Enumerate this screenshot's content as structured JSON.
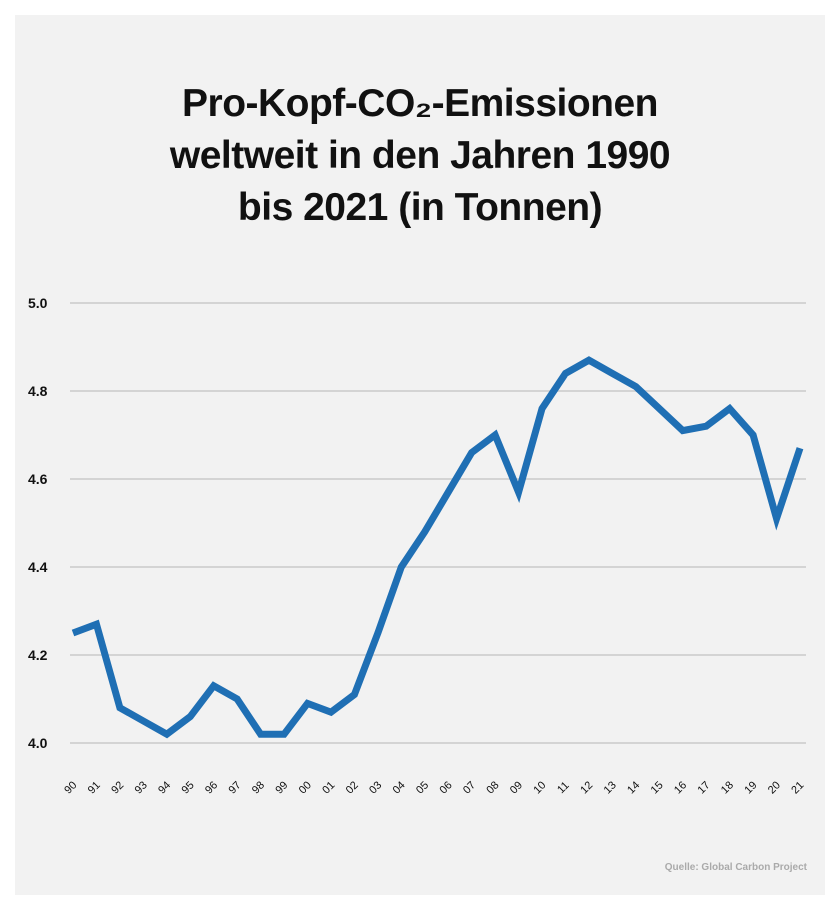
{
  "chart_data": {
    "type": "line",
    "title": [
      "Pro-Kopf-CO₂-Emissionen",
      "weltweit in den Jahren 1990",
      "bis 2021 (in Tonnen)"
    ],
    "xlabel": "",
    "ylabel": "",
    "categories": [
      "90",
      "91",
      "92",
      "93",
      "94",
      "95",
      "96",
      "97",
      "98",
      "99",
      "00",
      "01",
      "02",
      "03",
      "04",
      "05",
      "06",
      "07",
      "08",
      "09",
      "10",
      "11",
      "12",
      "13",
      "14",
      "15",
      "16",
      "17",
      "18",
      "19",
      "20",
      "21"
    ],
    "values": [
      4.25,
      4.27,
      4.08,
      4.05,
      4.02,
      4.06,
      4.13,
      4.1,
      4.02,
      4.02,
      4.09,
      4.07,
      4.11,
      4.25,
      4.4,
      4.48,
      4.57,
      4.66,
      4.7,
      4.57,
      4.76,
      4.84,
      4.87,
      4.84,
      4.81,
      4.76,
      4.71,
      4.72,
      4.76,
      4.7,
      4.51,
      4.67
    ],
    "ylim": [
      4.0,
      5.0
    ],
    "yticks": [
      "4.0",
      "4.2",
      "4.4",
      "4.6",
      "4.8",
      "5.0"
    ],
    "grid": true,
    "line_color": "#1f6fb4",
    "source": "Quelle: Global Carbon Project"
  }
}
